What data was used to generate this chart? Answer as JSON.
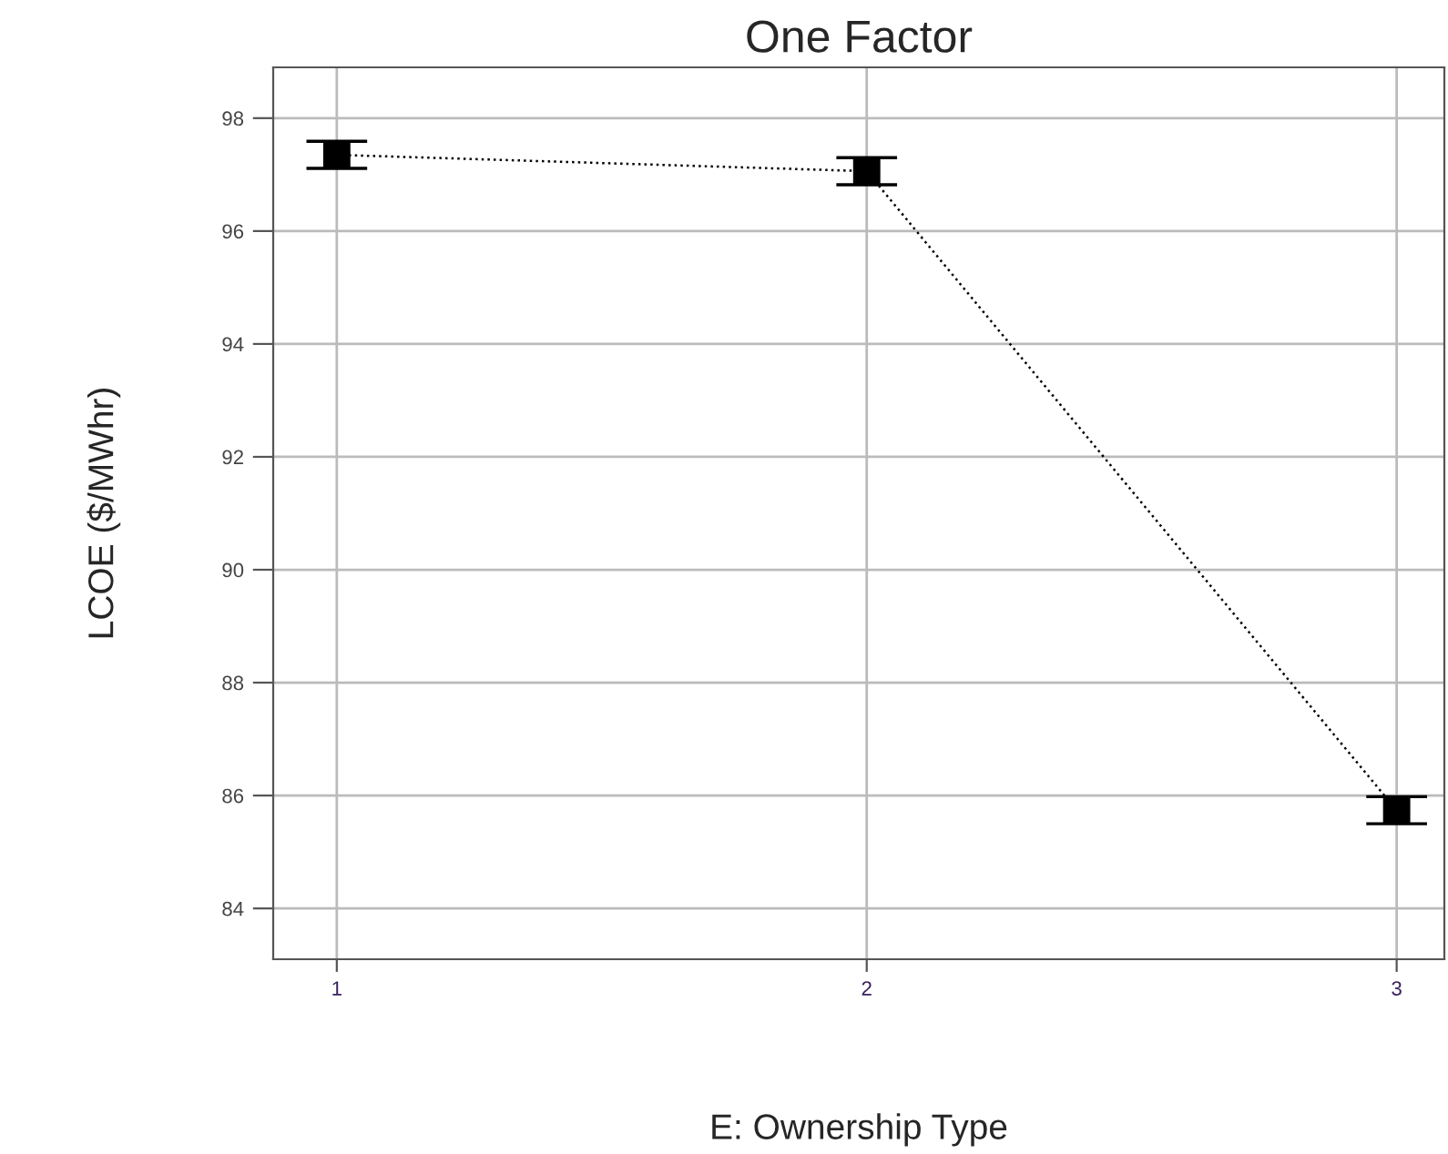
{
  "chart_data": {
    "type": "line",
    "title": "One Factor",
    "xlabel": "E: Ownership Type",
    "ylabel": "LCOE ($/MWhr)",
    "x": [
      1,
      2,
      3
    ],
    "series": [
      {
        "color": "#000000",
        "values": [
          97.35,
          97.06,
          85.74
        ],
        "errors": [
          0.24,
          0.24,
          0.24
        ]
      }
    ],
    "xlim": [
      0.88,
      3.09
    ],
    "xticks": [
      1,
      2,
      3
    ],
    "ylim": [
      83.1,
      98.9
    ],
    "yticks": [
      84,
      86,
      88,
      90,
      92,
      94,
      96,
      98
    ],
    "grid": true,
    "marker": "square",
    "line_style": "dotted",
    "legend": false
  }
}
